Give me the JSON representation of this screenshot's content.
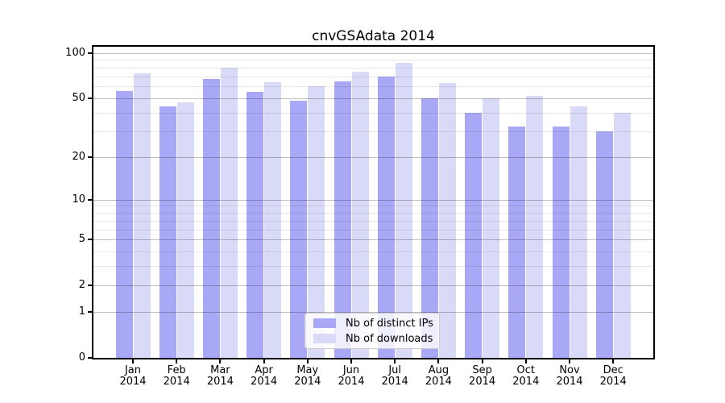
{
  "chart_data": {
    "type": "bar",
    "title": "cnvGSAdata 2014",
    "year": "2014",
    "categories": [
      "Jan",
      "Feb",
      "Mar",
      "Apr",
      "May",
      "Jun",
      "Jul",
      "Aug",
      "Sep",
      "Oct",
      "Nov",
      "Dec"
    ],
    "series": [
      {
        "name": "Nb of distinct IPs",
        "color": "#a8a8f6",
        "values": [
          56,
          44,
          67,
          55,
          48,
          65,
          70,
          50,
          40,
          32,
          32,
          30
        ]
      },
      {
        "name": "Nb of downloads",
        "color": "#d9d9f8",
        "values": [
          73,
          47,
          80,
          64,
          60,
          75,
          86,
          63,
          50,
          52,
          44,
          40
        ]
      }
    ],
    "y_axis": {
      "scale": "symlog",
      "max": 110,
      "ticks": [
        0,
        1,
        2,
        5,
        10,
        20,
        50,
        100
      ],
      "minor_ticks": [
        3,
        4,
        6,
        7,
        8,
        9,
        30,
        40,
        60,
        70,
        80,
        90
      ]
    },
    "grid": true,
    "legend_position": "lower center",
    "colors": {
      "spine": "#000000",
      "background": "#ffffff",
      "gridline_major": "rgba(0,0,0,0.25)",
      "gridline_minor": "rgba(0,0,0,0.09)"
    }
  }
}
